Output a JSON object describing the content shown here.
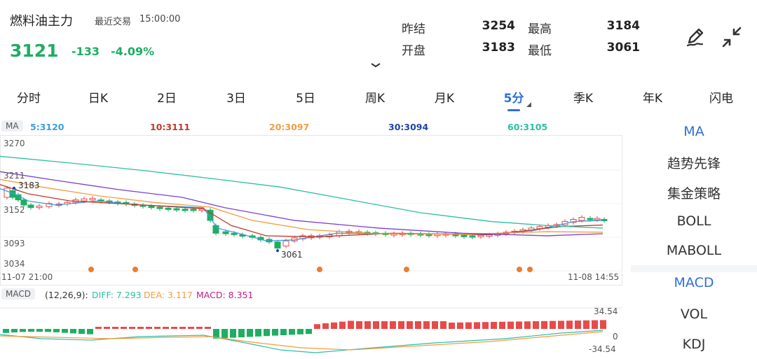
{
  "header": {
    "title": "燃料油主力",
    "last_trade_label": "最近交易",
    "last_trade_time": "15:00:00",
    "price": "3121",
    "change": "-133",
    "change_pct": "-4.09%",
    "stats": {
      "prev_settle_label": "昨结",
      "prev_settle": "3254",
      "high_label": "最高",
      "high": "3184",
      "open_label": "开盘",
      "open": "3183",
      "low_label": "最低",
      "low": "3061"
    },
    "icons": [
      "pen-icon",
      "collapse-icon"
    ]
  },
  "tabs": [
    "分时",
    "日K",
    "2日",
    "3日",
    "5日",
    "周K",
    "月K",
    "5分",
    "季K",
    "年K",
    "闪电"
  ],
  "active_tab": "5分",
  "ma_legend": {
    "tag": "MA",
    "ma5": "5:3120",
    "ma10": "10:3111",
    "ma20": "20:3097",
    "ma30": "30:3094",
    "ma60": "60:3105"
  },
  "colors": {
    "up": "#e84a4a",
    "down": "#1eae61",
    "ma5": "#3aa0dc",
    "ma10": "#c0392b",
    "ma20": "#f39c40",
    "ma30": "#7b3fd6",
    "ma60": "#2bbfa4",
    "accent": "#2f6fd6",
    "dot": "#f07b2a"
  },
  "price_axis": {
    "labels": [
      "3270",
      "3211",
      "3152",
      "3093",
      "3034"
    ],
    "high_label": "3183",
    "low_label": "3061",
    "start_time": "11-07 21:00",
    "end_time": "11-08 14:55"
  },
  "macd_legend": {
    "tag": "MACD",
    "params": "(12,26,9):",
    "diff": "DIFF: 7.293",
    "dea": "DEA: 3.117",
    "macd": "MACD: 8.351"
  },
  "macd_axis": {
    "top": "34.54",
    "mid": "0",
    "bottom": "-34.54"
  },
  "right_panel": {
    "main_indicators": [
      "MA",
      "趋势先锋",
      "集金策略",
      "BOLL",
      "MABOLL"
    ],
    "sub_indicators": [
      "MACD",
      "VOL",
      "KDJ"
    ],
    "active_main": "MA",
    "active_sub": "MACD"
  },
  "chart_data": {
    "type": "line",
    "y_range": [
      3034,
      3270
    ],
    "x_range": [
      "11-07 21:00",
      "11-08 14:55"
    ],
    "macd_range": [
      -34.54,
      34.54
    ]
  }
}
